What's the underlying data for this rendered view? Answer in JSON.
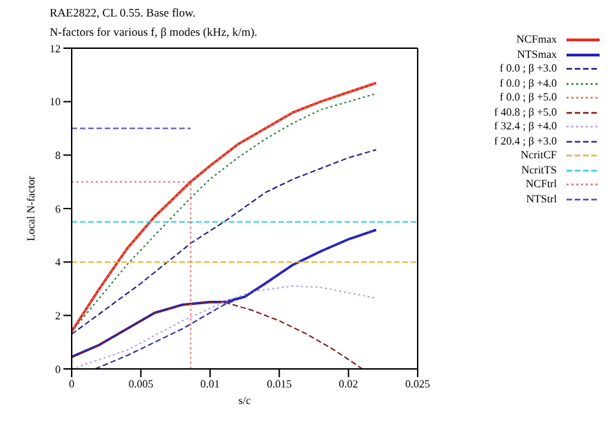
{
  "chart_data": {
    "type": "line",
    "title": "RAE2822, CL 0.55. Base flow.",
    "subtitle": "N-factors for various f, β modes (kHz, k/m).",
    "xlabel": "s/c",
    "ylabel": "Local N-factor",
    "xlim": [
      0,
      0.025
    ],
    "xticks": [
      0,
      0.005,
      0.01,
      0.015,
      0.02,
      0.025
    ],
    "ylim": [
      0,
      12
    ],
    "yticks": [
      0,
      2,
      4,
      6,
      8,
      10,
      12
    ],
    "legend": "right",
    "marker": "none",
    "series": [
      {
        "name": "NCFmax",
        "color": "#e8281e",
        "line_style": "solid",
        "x": [
          0,
          0.002,
          0.004,
          0.006,
          0.0086,
          0.01,
          0.012,
          0.014,
          0.016,
          0.018,
          0.02,
          0.022
        ],
        "values": [
          1.4,
          3.0,
          4.5,
          5.7,
          7.0,
          7.6,
          8.4,
          9.0,
          9.6,
          10.0,
          10.35,
          10.7
        ]
      },
      {
        "name": "NTSmax",
        "color": "#2020c0",
        "line_style": "solid",
        "x": [
          0,
          0.002,
          0.004,
          0.006,
          0.008,
          0.01,
          0.011,
          0.0125,
          0.014,
          0.016,
          0.018,
          0.02,
          0.022
        ],
        "values": [
          0.45,
          0.9,
          1.5,
          2.1,
          2.4,
          2.5,
          2.5,
          2.7,
          3.2,
          3.9,
          4.4,
          4.85,
          5.2
        ]
      },
      {
        "name": "f 0.0 ; β +3.0",
        "color": "#20208a",
        "line_style": "dashed",
        "x": [
          0,
          0.005,
          0.0086,
          0.011,
          0.014,
          0.016,
          0.018,
          0.02,
          0.022
        ],
        "values": [
          1.3,
          3.2,
          4.7,
          5.5,
          6.6,
          7.1,
          7.5,
          7.9,
          8.2
        ]
      },
      {
        "name": "f 0.0 ; β +4.0",
        "color": "#208040",
        "line_style": "dotted",
        "x": [
          0,
          0.004,
          0.006,
          0.0086,
          0.01,
          0.012,
          0.014,
          0.016,
          0.018,
          0.02,
          0.022
        ],
        "values": [
          1.4,
          3.9,
          5.0,
          6.4,
          7.1,
          7.9,
          8.6,
          9.2,
          9.7,
          10.0,
          10.3
        ]
      },
      {
        "name": "f 0.0 ; β +5.0",
        "color": "#e07050",
        "line_style": "dotted",
        "x": [
          0,
          0.002,
          0.004,
          0.006,
          0.0086,
          0.01,
          0.012,
          0.014,
          0.016,
          0.018,
          0.02,
          0.022
        ],
        "values": [
          1.4,
          3.0,
          4.5,
          5.7,
          7.0,
          7.6,
          8.4,
          9.0,
          9.6,
          10.0,
          10.35,
          10.7
        ]
      },
      {
        "name": "f 40.8 ; β +5.0",
        "color": "#802020",
        "line_style": "dashed",
        "x": [
          0,
          0.002,
          0.004,
          0.006,
          0.008,
          0.01,
          0.011,
          0.013,
          0.015,
          0.017,
          0.019,
          0.021
        ],
        "values": [
          0.45,
          0.9,
          1.5,
          2.1,
          2.4,
          2.5,
          2.5,
          2.2,
          1.8,
          1.3,
          0.7,
          0.0
        ]
      },
      {
        "name": "f 32.4 ; β +4.0",
        "color": "#b0a0f0",
        "line_style": "dotted",
        "x": [
          0,
          0.004,
          0.008,
          0.011,
          0.013,
          0.016,
          0.018,
          0.02,
          0.022
        ],
        "values": [
          0.0,
          0.7,
          1.8,
          2.5,
          2.9,
          3.1,
          3.05,
          2.85,
          2.65
        ]
      },
      {
        "name": "f 20.4 ; β +3.0",
        "color": "#3030a0",
        "line_style": "dashed",
        "x": [
          0.0017,
          0.004,
          0.008,
          0.011,
          0.0125,
          0.014,
          0.016,
          0.018,
          0.02,
          0.022
        ],
        "values": [
          0.0,
          0.5,
          1.5,
          2.4,
          2.7,
          3.2,
          3.9,
          4.4,
          4.85,
          5.2
        ]
      },
      {
        "name": "NcritCF",
        "color": "#f0b030",
        "line_style": "dashed",
        "x": [
          0,
          0.025
        ],
        "values": [
          4,
          4
        ]
      },
      {
        "name": "NcritTS",
        "color": "#30d0e0",
        "line_style": "dashed",
        "x": [
          0,
          0.025
        ],
        "values": [
          5.5,
          5.5
        ]
      },
      {
        "name": "NCFtrl",
        "color": "#f07070",
        "line_style": "dotted",
        "x": [
          0,
          0.0086,
          0.0086
        ],
        "values": [
          7,
          7,
          0
        ]
      },
      {
        "name": "NTStrl",
        "color": "#5050c0",
        "line_style": "dashed",
        "x": [
          0,
          0.0086
        ],
        "values": [
          9,
          9
        ]
      }
    ]
  }
}
